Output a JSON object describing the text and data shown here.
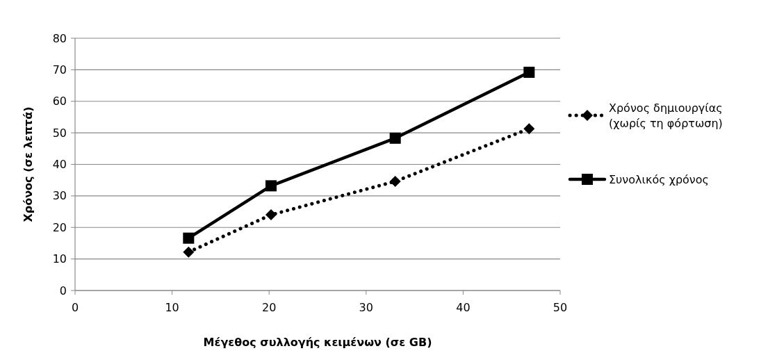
{
  "chart_data": {
    "type": "line",
    "xlabel": "Μέγεθος συλλογής κειμένων (σε GB)",
    "ylabel": "Χρόνος (σε λεπτά)",
    "series": [
      {
        "name": "Χρόνος δημιουργίας (χωρίς τη φόρτωση)",
        "color": "#000000",
        "x": [
          11.7,
          20.2,
          33.0,
          46.8
        ],
        "values": [
          12.2,
          24.0,
          34.6,
          51.3
        ],
        "marker": "diamond",
        "line_style": "dotted"
      },
      {
        "name": "Συνολικός χρόνος",
        "color": "#000000",
        "x": [
          11.7,
          20.2,
          33.0,
          46.8
        ],
        "values": [
          16.6,
          33.2,
          48.3,
          69.2
        ],
        "marker": "square",
        "line_style": "solid"
      }
    ],
    "xlim": [
      0,
      50
    ],
    "xticks": [
      0,
      10,
      20,
      30,
      40,
      50
    ],
    "ylim": [
      0,
      80
    ],
    "yticks": [
      0,
      10,
      20,
      30,
      40,
      50,
      60,
      70,
      80
    ],
    "grid": "y",
    "legend": "right"
  }
}
